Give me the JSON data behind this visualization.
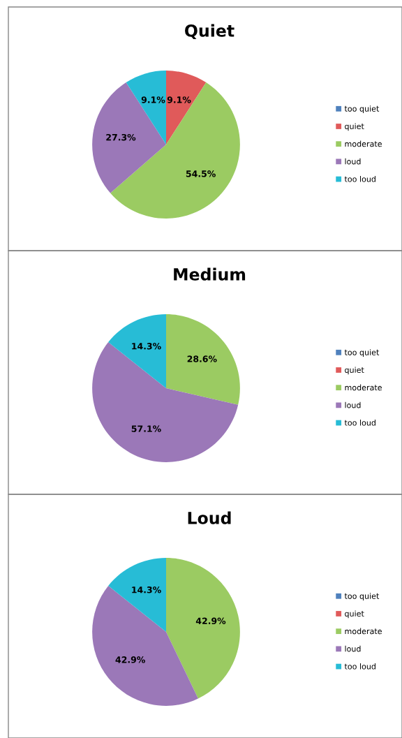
{
  "chart_data": [
    {
      "type": "pie",
      "title": "Quiet",
      "categories": [
        "too quiet",
        "quiet",
        "moderate",
        "loud",
        "too loud"
      ],
      "values": [
        0,
        9.1,
        54.5,
        27.3,
        9.1
      ],
      "value_labels": [
        null,
        "9.1%",
        "54.5%",
        "27.3%",
        "9.1%"
      ],
      "colors": [
        "#4f81bd",
        "#e05a5a",
        "#9bcb62",
        "#9b78b8",
        "#27bcd6"
      ],
      "legend": "right"
    },
    {
      "type": "pie",
      "title": "Medium",
      "categories": [
        "too quiet",
        "quiet",
        "moderate",
        "loud",
        "too loud"
      ],
      "values": [
        0,
        0,
        28.6,
        57.1,
        14.3
      ],
      "value_labels": [
        null,
        null,
        "28.6%",
        "57.1%",
        "14.3%"
      ],
      "colors": [
        "#4f81bd",
        "#e05a5a",
        "#9bcb62",
        "#9b78b8",
        "#27bcd6"
      ],
      "legend": "right"
    },
    {
      "type": "pie",
      "title": "Loud",
      "categories": [
        "too quiet",
        "quiet",
        "moderate",
        "loud",
        "too loud"
      ],
      "values": [
        0,
        0,
        42.9,
        42.9,
        14.3
      ],
      "value_labels": [
        null,
        null,
        "42.9%",
        "42.9%",
        "14.3%"
      ],
      "colors": [
        "#4f81bd",
        "#e05a5a",
        "#9bcb62",
        "#9b78b8",
        "#27bcd6"
      ],
      "legend": "right"
    }
  ]
}
